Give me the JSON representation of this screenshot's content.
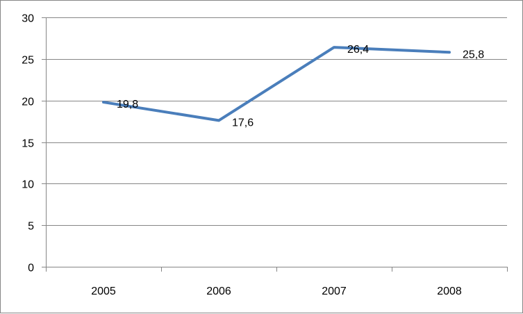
{
  "chart_data": {
    "type": "line",
    "title": "",
    "xlabel": "",
    "ylabel": "",
    "categories": [
      "2005",
      "2006",
      "2007",
      "2008"
    ],
    "series": [
      {
        "values": [
          19.8,
          17.6,
          26.4,
          25.8
        ],
        "labels": [
          "19,8",
          "17,6",
          "26,4",
          "25,8"
        ],
        "color": "#4A7EBB"
      }
    ],
    "ylim": [
      0,
      30
    ],
    "yticks": [
      0,
      5,
      10,
      15,
      20,
      25,
      30
    ],
    "ytick_labels": [
      "0",
      "5",
      "10",
      "15",
      "20",
      "25",
      "30"
    ],
    "grid": true,
    "legend": "none",
    "data_labels": true,
    "colors": {
      "gridline": "#868686",
      "axis": "#868686",
      "frame": "#868686"
    }
  }
}
